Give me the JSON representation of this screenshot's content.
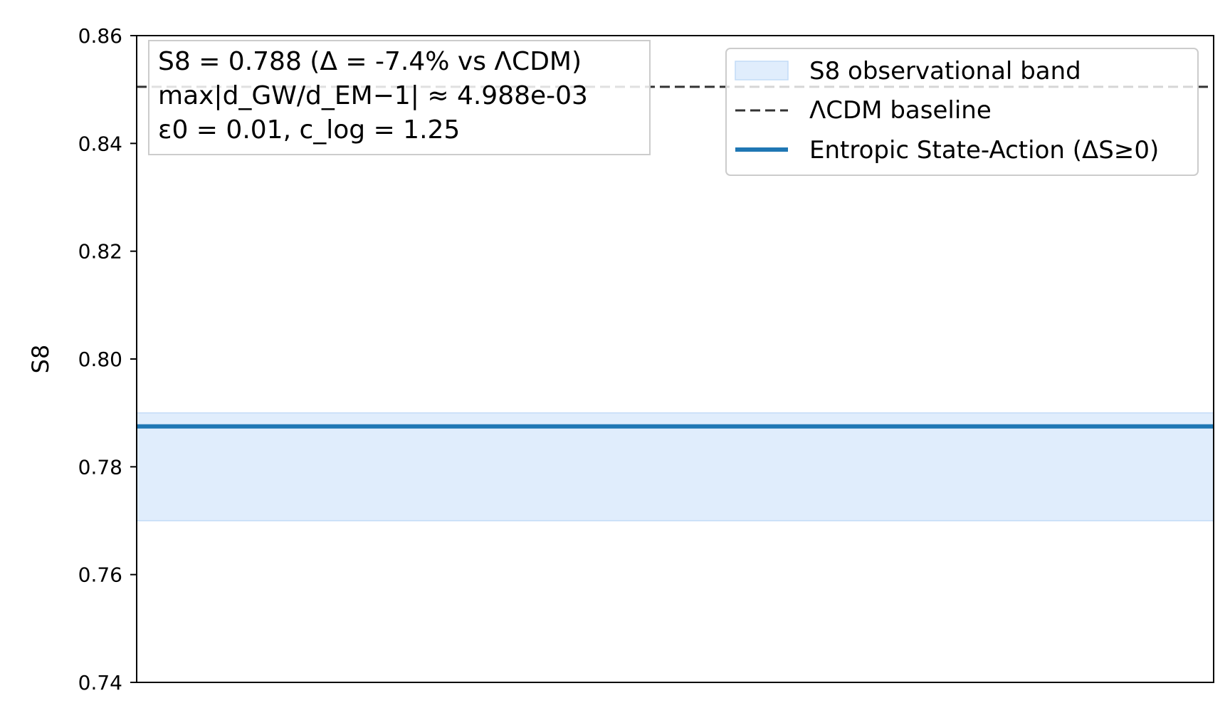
{
  "chart_data": {
    "type": "line",
    "xlabel": "",
    "ylabel": "S8",
    "ylim": [
      0.74,
      0.86
    ],
    "yticks": [
      {
        "value": 0.74,
        "label": "0.74"
      },
      {
        "value": 0.76,
        "label": "0.76"
      },
      {
        "value": 0.78,
        "label": "0.78"
      },
      {
        "value": 0.8,
        "label": "0.80"
      },
      {
        "value": 0.82,
        "label": "0.82"
      },
      {
        "value": 0.84,
        "label": "0.84"
      },
      {
        "value": 0.86,
        "label": "0.86"
      }
    ],
    "grid": false,
    "legend_position": "top-right",
    "band": {
      "name": "S8 observational band",
      "low": 0.77,
      "high": 0.79,
      "color": "#d6e7fb"
    },
    "series": [
      {
        "name": "ΛCDM baseline",
        "value": 0.8505,
        "style": "dashed",
        "color": "#333333"
      },
      {
        "name": "Entropic State-Action (ΔS≥0)",
        "value": 0.7875,
        "style": "solid",
        "color": "#1f77b4"
      }
    ],
    "annotation": [
      "S8 = 0.788  (Δ = -7.4% vs ΛCDM)",
      "max|d_GW/d_EM−1| ≈ 4.988e-03",
      "ε0 = 0.01,  c_log = 1.25"
    ]
  }
}
